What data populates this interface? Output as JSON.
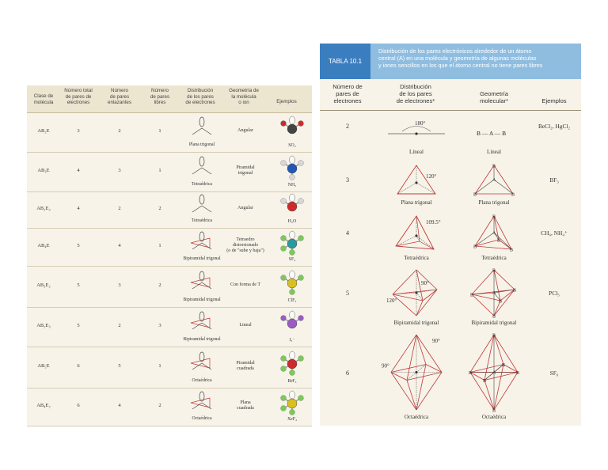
{
  "left_table": {
    "headers": {
      "clase": [
        "Clase de",
        "molécula"
      ],
      "total": [
        "Número total",
        "de pares de",
        "electrones"
      ],
      "enlazantes": [
        "Número",
        "de pares",
        "enlazantes"
      ],
      "libres": [
        "Número",
        "de pares",
        "libres"
      ],
      "distribucion": [
        "Distribución",
        "de los pares",
        "de electrones"
      ],
      "geometria": [
        "Geometría de",
        "la molécula",
        "o ion"
      ],
      "ejemplos": [
        "Ejemplos"
      ]
    },
    "rows": [
      {
        "clase": "AB₂E",
        "total": "3",
        "enlazantes": "2",
        "libres": "1",
        "dist_label": "Plana trigonal",
        "geometria": [
          "Angular"
        ],
        "ejemplo": "SO₂",
        "atom_color": "#444444",
        "lig_color": "#cc2b2b"
      },
      {
        "clase": "AB₃E",
        "total": "4",
        "enlazantes": "3",
        "libres": "1",
        "dist_label": "Tetraédrica",
        "geometria": [
          "Piramidal",
          "trigonal"
        ],
        "ejemplo": "NH₃",
        "atom_color": "#2457b5",
        "lig_color": "#d8d8d8"
      },
      {
        "clase": "AB₂E₂",
        "total": "4",
        "enlazantes": "2",
        "libres": "2",
        "dist_label": "Tetraédrica",
        "geometria": [
          "Angular"
        ],
        "ejemplo": "H₂O",
        "atom_color": "#cc2b2b",
        "lig_color": "#d8d8d8"
      },
      {
        "clase": "AB₄E",
        "total": "5",
        "enlazantes": "4",
        "libres": "1",
        "dist_label": "Bipiramidal trigonal",
        "geometria": [
          "Tetraedro",
          "distorsionado",
          "(o de \"sube y baja\")"
        ],
        "ejemplo": "SF₄",
        "atom_color": "#2a9a9a",
        "lig_color": "#7cc95a"
      },
      {
        "clase": "AB₃E₂",
        "total": "5",
        "enlazantes": "3",
        "libres": "2",
        "dist_label": "Bipiramidal trigonal",
        "geometria": [
          "Con forma de T"
        ],
        "ejemplo": "ClF₃",
        "atom_color": "#d8c020",
        "lig_color": "#7cc95a"
      },
      {
        "clase": "AB₂E₃",
        "total": "5",
        "enlazantes": "2",
        "libres": "3",
        "dist_label": "Bipiramidal trigonal",
        "geometria": [
          "Lineal"
        ],
        "ejemplo": "I₃⁻",
        "atom_color": "#9a5bc4",
        "lig_color": "#9a5bc4"
      },
      {
        "clase": "AB₅E",
        "total": "6",
        "enlazantes": "5",
        "libres": "1",
        "dist_label": "Octaédrica",
        "geometria": [
          "Piramidal",
          "cuadrada"
        ],
        "ejemplo": "BrF₅",
        "atom_color": "#cc2b2b",
        "lig_color": "#7cc95a"
      },
      {
        "clase": "AB₄E₂",
        "total": "6",
        "enlazantes": "4",
        "libres": "2",
        "dist_label": "Octaédrica",
        "geometria": [
          "Plana",
          "cuadrada"
        ],
        "ejemplo": "XeF₄",
        "atom_color": "#d8c020",
        "lig_color": "#7cc95a"
      }
    ]
  },
  "right_table": {
    "badge": "TABLA 10.1",
    "caption": [
      "Distribución de los pares electrónicos alrededor de un átomo",
      "central (A) en una molécula y geometría de algunas moléculas",
      "y iones sencillos en los que el átomo central no tiene pares libres"
    ],
    "headers": {
      "numero": [
        "Número de",
        "pares de",
        "electrones"
      ],
      "distribucion": [
        "Distribución",
        "de los pares",
        "de electrones*"
      ],
      "geometria": [
        "Geometría",
        "molecular*"
      ],
      "ejemplos": [
        "Ejemplos"
      ]
    },
    "rows": [
      {
        "numero": "2",
        "dist_label": "Lineal",
        "geom_label": "Lineal",
        "ejemplos": "BeCl₂, HgCl₂",
        "angle": "180°",
        "formula": "B — A — B"
      },
      {
        "numero": "3",
        "dist_label": "Plana trigonal",
        "geom_label": "Plana trigonal",
        "ejemplos": "BF₃",
        "angle": "120°"
      },
      {
        "numero": "4",
        "dist_label": "Tetraédrica",
        "geom_label": "Tetraédrica",
        "ejemplos": "CH₄, NH₄⁺",
        "angle": "109.5°"
      },
      {
        "numero": "5",
        "dist_label": "Bipiramidal trigonal",
        "geom_label": "Bipiramidal trigonal",
        "ejemplos": "PCl₅",
        "angle": "90°",
        "angle2": "120°"
      },
      {
        "numero": "6",
        "dist_label": "Octaédrica",
        "geom_label": "Octaédrica",
        "ejemplos": "SF₆",
        "angle": "90°",
        "angle2": "90°"
      }
    ]
  }
}
